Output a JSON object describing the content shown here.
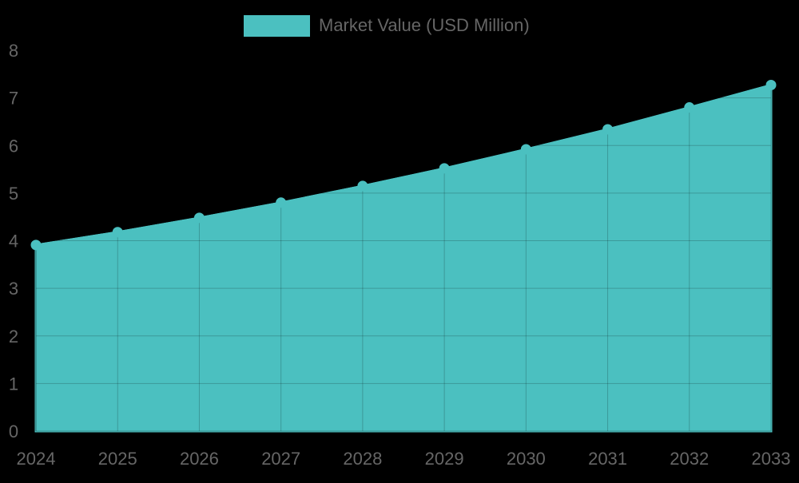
{
  "chart_data": {
    "type": "area",
    "title": "",
    "xlabel": "",
    "ylabel": "",
    "categories": [
      "2024",
      "2025",
      "2026",
      "2027",
      "2028",
      "2029",
      "2030",
      "2031",
      "2032",
      "2033"
    ],
    "series": [
      {
        "name": "Market Value (USD Million)",
        "values": [
          3.91,
          4.18,
          4.48,
          4.8,
          5.15,
          5.52,
          5.92,
          6.34,
          6.8,
          7.27
        ],
        "color": "#4bc0c0"
      }
    ],
    "ylim": [
      0,
      8
    ],
    "yticks": [
      "0",
      "1",
      "2",
      "3",
      "4",
      "5",
      "6",
      "7",
      "8"
    ],
    "grid": true,
    "legend_position": "top"
  },
  "legend": {
    "label": "Market Value (USD Million)",
    "color": "#4bc0c0"
  },
  "colors": {
    "background": "#000000",
    "fill": "#4bc0c0",
    "grid": "rgba(0,0,0,0.2)",
    "tick_text": "#666666"
  }
}
